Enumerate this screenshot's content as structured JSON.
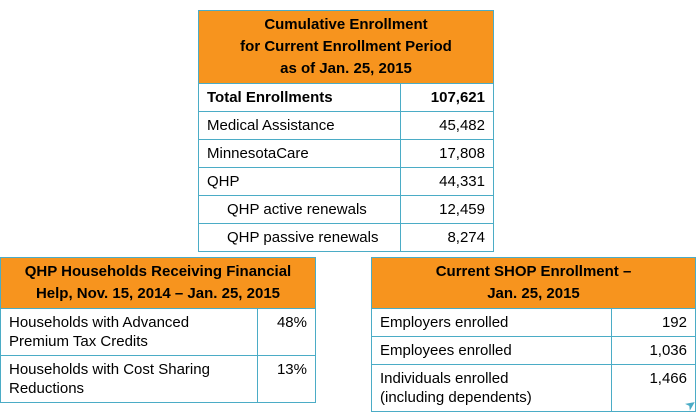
{
  "colors": {
    "header_bg": "#F7941E",
    "table_border": "#4BACC6",
    "text": "#000000",
    "page_bg": "#FFFFFF"
  },
  "icons": {
    "swoosh_arrow": "➤"
  },
  "cumulative_table": {
    "title_lines": [
      "Cumulative Enrollment",
      "for Current Enrollment Period",
      "as of Jan. 25, 2015"
    ],
    "rows": [
      {
        "label": "Total Enrollments",
        "value": "107,621"
      },
      {
        "label": "Medical Assistance",
        "value": "45,482"
      },
      {
        "label": "MinnesotaCare",
        "value": "17,808"
      },
      {
        "label": "QHP",
        "value": "44,331"
      },
      {
        "label": "QHP active renewals",
        "value": "12,459"
      },
      {
        "label": "QHP passive renewals",
        "value": "8,274"
      }
    ]
  },
  "qhp_table": {
    "title_lines": [
      "QHP Households Receiving Financial",
      "Help, Nov. 15, 2014 – Jan. 25, 2015"
    ],
    "rows": [
      {
        "label_line1": "Households with Advanced",
        "label_line2": "Premium Tax Credits",
        "value": "48%"
      },
      {
        "label_line1": "Households with Cost Sharing",
        "label_line2": "Reductions",
        "value": "13%"
      }
    ]
  },
  "shop_table": {
    "title_lines": [
      "Current SHOP Enrollment –",
      "Jan. 25, 2015"
    ],
    "rows": [
      {
        "label_line1": "Employers enrolled",
        "label_line2": "",
        "value": "192"
      },
      {
        "label_line1": "Employees enrolled",
        "label_line2": "",
        "value": "1,036"
      },
      {
        "label_line1": "Individuals enrolled",
        "label_line2": "(including dependents)",
        "value": "1,466"
      }
    ]
  }
}
